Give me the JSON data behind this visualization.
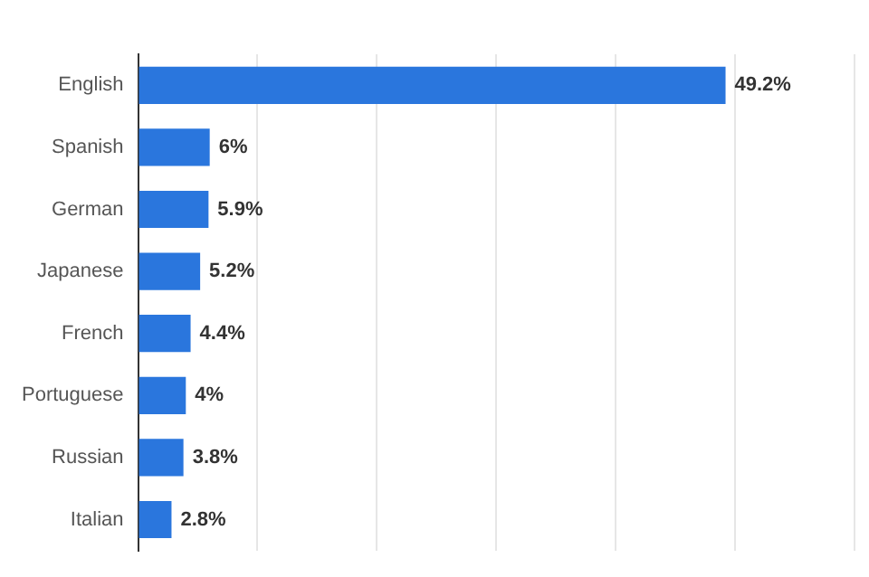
{
  "chart_data": {
    "type": "bar",
    "orientation": "horizontal",
    "categories": [
      "English",
      "Spanish",
      "German",
      "Japanese",
      "French",
      "Portuguese",
      "Russian",
      "Italian"
    ],
    "values": [
      49.2,
      6,
      5.9,
      5.2,
      4.4,
      4,
      3.8,
      2.8
    ],
    "value_labels": [
      "49.2%",
      "6%",
      "5.9%",
      "5.2%",
      "4.4%",
      "4%",
      "3.8%",
      "2.8%"
    ],
    "color": "#2a76dd",
    "xlim": [
      0,
      60
    ],
    "xticks": [
      {
        "value": 0,
        "label": null
      },
      {
        "value": 10,
        "label": null
      },
      {
        "value": 20,
        "label": null
      },
      {
        "value": 30,
        "label": null
      },
      {
        "value": 40,
        "label": null
      },
      {
        "value": 50,
        "label": null
      },
      {
        "value": 60,
        "label": null
      }
    ],
    "grid": "x",
    "tick_labels": "y"
  }
}
